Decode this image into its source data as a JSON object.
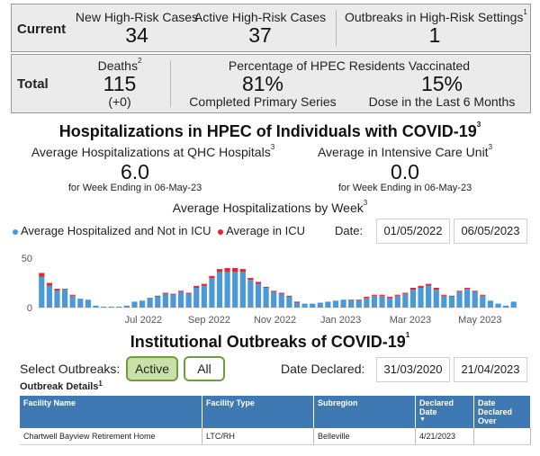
{
  "current": {
    "row_label": "Current",
    "new_cases": {
      "label": "New High-Risk Cases",
      "value": "34"
    },
    "active_cases": {
      "label": "Active High-Risk Cases",
      "value": "37"
    },
    "outbreaks": {
      "label": "Outbreaks in High-Risk Settings",
      "sup": "1",
      "value": "1"
    }
  },
  "total": {
    "row_label": "Total",
    "deaths": {
      "label": "Deaths",
      "sup": "2",
      "value": "115",
      "change": "(+0)"
    },
    "vacc_title": "Percentage of HPEC Residents Vaccinated",
    "primary": {
      "value": "81%",
      "label": "Completed Primary Series"
    },
    "recent_dose": {
      "value": "15%",
      "label": "Dose in the Last 6 Months"
    }
  },
  "hosp": {
    "title": "Hospitalizations in HPEC of Individuals with COVID-19",
    "title_sup": "3",
    "avg_qhc_label": "Average Hospitalizations at QHC Hospitals",
    "avg_qhc_sup": "3",
    "avg_qhc_value": "6.0",
    "avg_qhc_week": "for Week Ending in 06-May-23",
    "avg_icu_label": "Average in Intensive Care Unit",
    "avg_icu_sup": "3",
    "avg_icu_value": "0.0",
    "avg_icu_week": "for Week Ending in 06-May-23",
    "weekly_title": "Average Hospitalizations by Week",
    "weekly_sup": "3",
    "legend_not_icu": "Average Hospitalized and Not in ICU",
    "legend_icu": "Average in ICU",
    "date_label": "Date:",
    "date_from": "01/05/2022",
    "date_to": "06/05/2023"
  },
  "colors": {
    "not_icu": "#4a9ad9",
    "icu": "#e8262b",
    "active_pill": "#c9e1a8",
    "table_header": "#3f79b4"
  },
  "chart_data": {
    "type": "bar",
    "stacked": true,
    "ylim": [
      0,
      50
    ],
    "yticks": [
      "0",
      "50"
    ],
    "xtick_labels": [
      "Jul 2022",
      "Sep 2022",
      "Nov 2022",
      "Jan 2023",
      "Mar 2023",
      "May 2023"
    ],
    "series": [
      {
        "name": "Average Hospitalized and Not in ICU",
        "values": [
          31,
          22,
          17,
          18,
          12,
          9,
          8,
          2,
          1,
          1,
          1,
          2,
          6,
          7,
          10,
          11,
          14,
          13,
          16,
          14,
          20,
          22,
          30,
          36,
          36,
          36,
          36,
          28,
          24,
          20,
          16,
          14,
          11,
          5,
          4,
          4,
          5,
          6,
          7,
          8,
          7,
          7,
          10,
          12,
          12,
          10,
          12,
          14,
          18,
          20,
          22,
          18,
          12,
          11,
          16,
          19,
          16,
          12,
          7,
          4,
          2,
          6
        ]
      },
      {
        "name": "Average in ICU",
        "values": [
          4,
          3,
          2,
          1,
          1,
          0,
          0,
          0,
          0,
          0,
          0,
          0,
          0,
          0,
          0,
          1,
          1,
          1,
          1,
          1,
          2,
          2,
          2,
          3,
          4,
          4,
          3,
          2,
          2,
          1,
          1,
          1,
          1,
          1,
          0,
          0,
          0,
          0,
          0,
          0,
          1,
          1,
          1,
          1,
          1,
          1,
          1,
          1,
          2,
          2,
          2,
          2,
          1,
          1,
          1,
          1,
          1,
          1,
          0,
          0,
          0,
          0
        ]
      }
    ]
  },
  "outbreaks": {
    "title": "Institutional Outbreaks of COVID-19",
    "title_sup": "1",
    "select_label": "Select Outbreaks:",
    "active_btn": "Active",
    "all_btn": "All",
    "date_declared_label": "Date Declared:",
    "date_from": "31/03/2020",
    "date_to": "21/04/2023",
    "details_label": "Outbreak Details",
    "details_sup": "1",
    "columns": [
      "Facility Name",
      "Facility Type",
      "Subregion",
      "Declared Date",
      "Date Declared Over"
    ],
    "rows": [
      [
        "Chartwell Bayview Retirement Home",
        "LTC/RH",
        "Belleville",
        "4/21/2023",
        ""
      ]
    ]
  }
}
